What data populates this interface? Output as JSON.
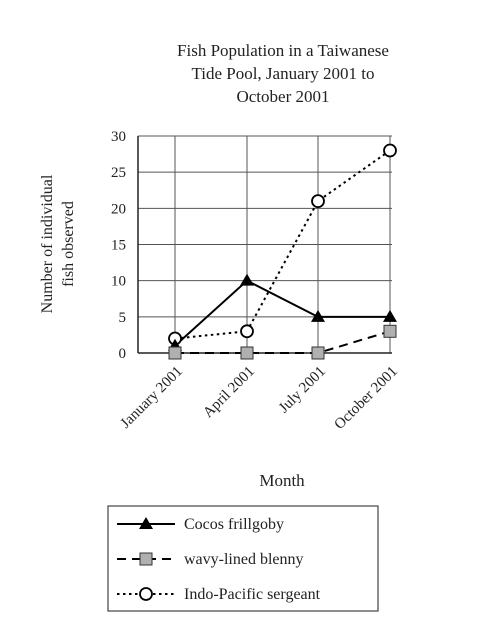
{
  "chart_data": {
    "type": "line",
    "title_lines": [
      "Fish Population in a Taiwanese",
      "Tide Pool, January 2001 to",
      "October 2001"
    ],
    "xlabel": "Month",
    "ylabel_lines": [
      "Number of individual",
      "fish observed"
    ],
    "categories": [
      "January 2001",
      "April 2001",
      "July 2001",
      "October 2001"
    ],
    "ylim": [
      0,
      30
    ],
    "yticks": [
      0,
      5,
      10,
      15,
      20,
      25,
      30
    ],
    "grid": true,
    "legend_position": "bottom",
    "series": [
      {
        "name": "Cocos frillgoby",
        "values": [
          1,
          10,
          5,
          5
        ],
        "line_style": "solid",
        "marker": "filled-triangle",
        "color": "#000000"
      },
      {
        "name": "wavy-lined blenny",
        "values": [
          0,
          0,
          0,
          3
        ],
        "line_style": "dashed",
        "marker": "gray-square",
        "color": "#000000",
        "marker_fill": "#b0b0b0"
      },
      {
        "name": "Indo-Pacific sergeant",
        "values": [
          2,
          3,
          21,
          28
        ],
        "line_style": "dotted",
        "marker": "open-circle",
        "color": "#000000"
      }
    ]
  }
}
